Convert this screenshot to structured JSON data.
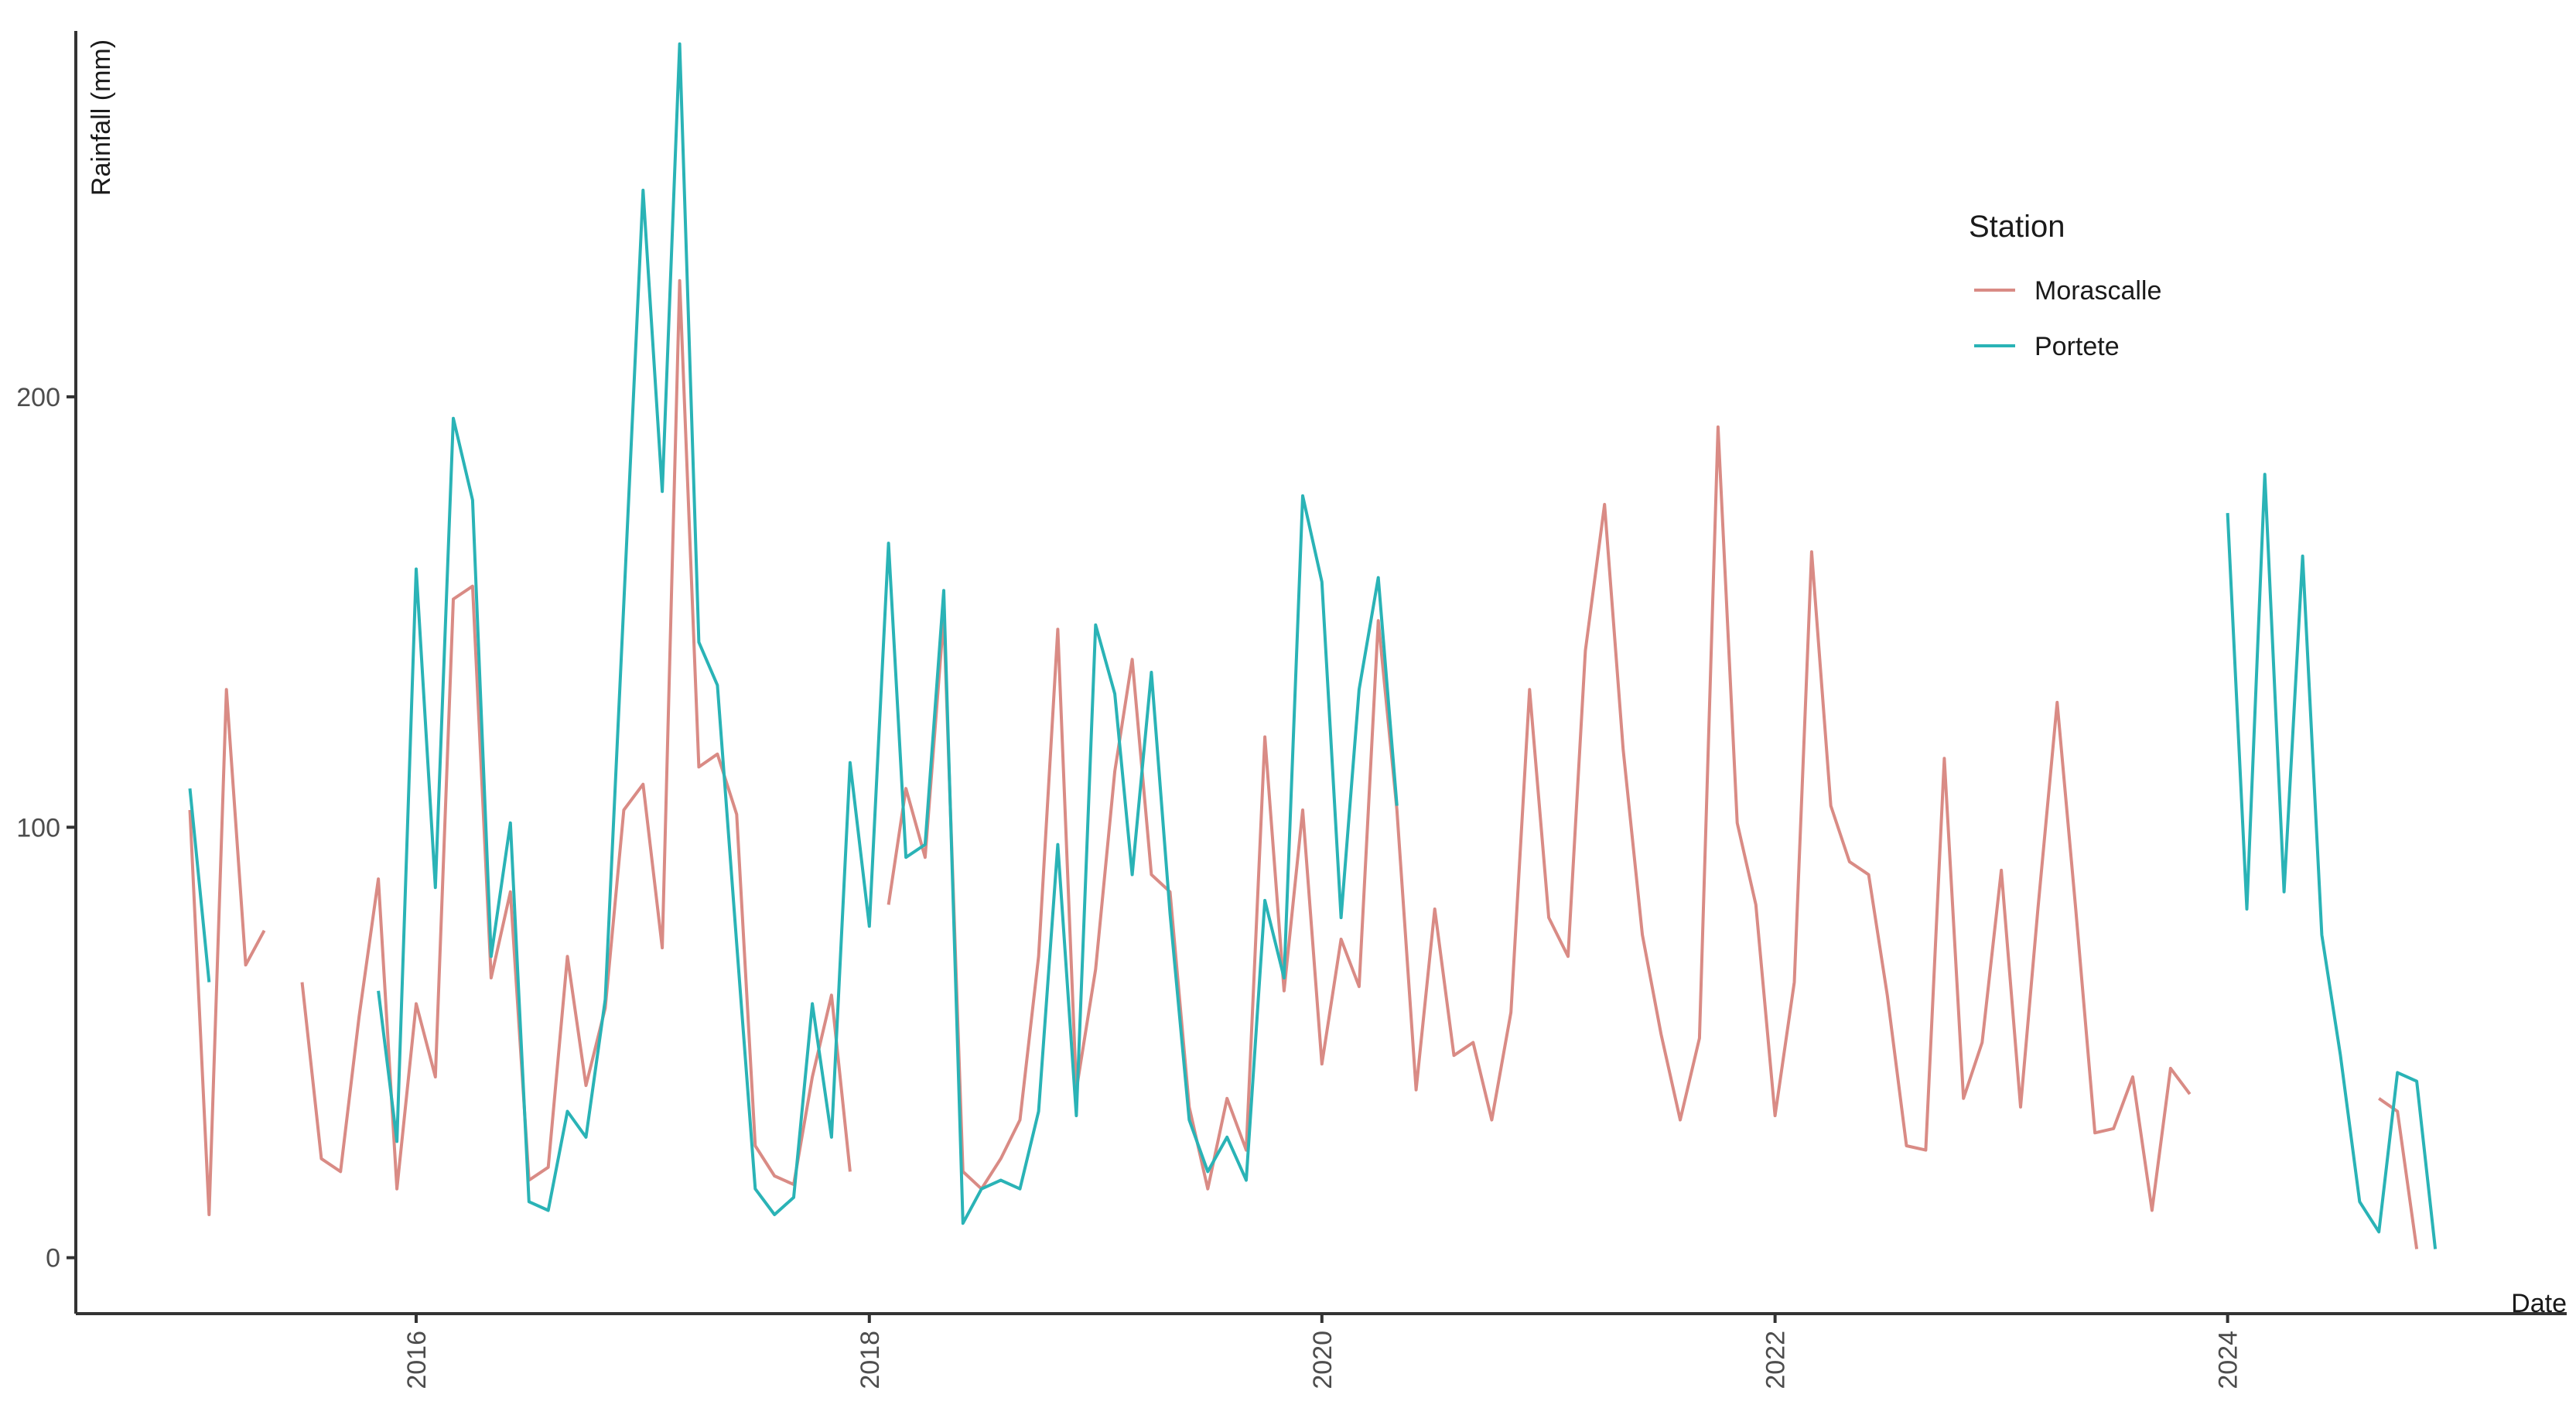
{
  "chart_data": {
    "type": "line",
    "title": "",
    "xlabel": "Date",
    "ylabel": "Rainfall (mm)",
    "xlim": [
      "2014-07-01",
      "2025-07-01"
    ],
    "ylim": [
      -13,
      285
    ],
    "x_ticks": [
      "2016",
      "2018",
      "2020",
      "2022",
      "2024"
    ],
    "y_ticks": [
      0,
      100,
      200
    ],
    "grid": false,
    "legend": {
      "title": "Station",
      "position": "top-right"
    },
    "series": [
      {
        "name": "Morascalle",
        "color": "#d98b85",
        "points": [
          [
            "2015-01-01",
            104
          ],
          [
            "2015-02-01",
            10
          ],
          [
            "2015-03-01",
            132
          ],
          [
            "2015-04-01",
            68
          ],
          [
            "2015-05-01",
            76
          ],
          [
            "2015-06-01",
            null
          ],
          [
            "2015-07-01",
            64
          ],
          [
            "2015-08-01",
            23
          ],
          [
            "2015-09-01",
            20
          ],
          [
            "2015-10-01",
            56
          ],
          [
            "2015-11-01",
            88
          ],
          [
            "2015-12-01",
            16
          ],
          [
            "2016-01-01",
            59
          ],
          [
            "2016-02-01",
            42
          ],
          [
            "2016-03-01",
            153
          ],
          [
            "2016-04-01",
            156
          ],
          [
            "2016-05-01",
            65
          ],
          [
            "2016-06-01",
            85
          ],
          [
            "2016-07-01",
            18
          ],
          [
            "2016-08-01",
            21
          ],
          [
            "2016-09-01",
            70
          ],
          [
            "2016-10-01",
            40
          ],
          [
            "2016-11-01",
            58
          ],
          [
            "2016-12-01",
            104
          ],
          [
            "2017-01-01",
            110
          ],
          [
            "2017-02-01",
            72
          ],
          [
            "2017-03-01",
            227
          ],
          [
            "2017-04-01",
            114
          ],
          [
            "2017-05-01",
            117
          ],
          [
            "2017-06-01",
            103
          ],
          [
            "2017-07-01",
            26
          ],
          [
            "2017-08-01",
            19
          ],
          [
            "2017-09-01",
            17
          ],
          [
            "2017-10-01",
            42
          ],
          [
            "2017-11-01",
            61
          ],
          [
            "2017-12-01",
            20
          ],
          [
            "2018-01-01",
            null
          ],
          [
            "2018-02-01",
            82
          ],
          [
            "2018-03-01",
            109
          ],
          [
            "2018-04-01",
            93
          ],
          [
            "2018-05-01",
            149
          ],
          [
            "2018-06-01",
            20
          ],
          [
            "2018-07-01",
            16
          ],
          [
            "2018-08-01",
            23
          ],
          [
            "2018-09-01",
            32
          ],
          [
            "2018-10-01",
            70
          ],
          [
            "2018-11-01",
            146
          ],
          [
            "2018-12-01",
            39
          ],
          [
            "2019-01-01",
            67
          ],
          [
            "2019-02-01",
            113
          ],
          [
            "2019-03-01",
            139
          ],
          [
            "2019-04-01",
            89
          ],
          [
            "2019-05-01",
            85
          ],
          [
            "2019-06-01",
            35
          ],
          [
            "2019-07-01",
            16
          ],
          [
            "2019-08-01",
            37
          ],
          [
            "2019-09-01",
            25
          ],
          [
            "2019-10-01",
            121
          ],
          [
            "2019-11-01",
            62
          ],
          [
            "2019-12-01",
            104
          ],
          [
            "2020-01-01",
            45
          ],
          [
            "2020-02-01",
            74
          ],
          [
            "2020-03-01",
            63
          ],
          [
            "2020-04-01",
            148
          ],
          [
            "2020-05-01",
            104
          ],
          [
            "2020-06-01",
            39
          ],
          [
            "2020-07-01",
            81
          ],
          [
            "2020-08-01",
            47
          ],
          [
            "2020-09-01",
            50
          ],
          [
            "2020-10-01",
            32
          ],
          [
            "2020-11-01",
            57
          ],
          [
            "2020-12-01",
            132
          ],
          [
            "2021-01-01",
            79
          ],
          [
            "2021-02-01",
            70
          ],
          [
            "2021-03-01",
            141
          ],
          [
            "2021-04-01",
            175
          ],
          [
            "2021-05-01",
            118
          ],
          [
            "2021-06-01",
            75
          ],
          [
            "2021-07-01",
            52
          ],
          [
            "2021-08-01",
            32
          ],
          [
            "2021-09-01",
            51
          ],
          [
            "2021-10-01",
            193
          ],
          [
            "2021-11-01",
            101
          ],
          [
            "2021-12-01",
            82
          ],
          [
            "2022-01-01",
            33
          ],
          [
            "2022-02-01",
            64
          ],
          [
            "2022-03-01",
            164
          ],
          [
            "2022-04-01",
            105
          ],
          [
            "2022-05-01",
            92
          ],
          [
            "2022-06-01",
            89
          ],
          [
            "2022-07-01",
            61
          ],
          [
            "2022-08-01",
            26
          ],
          [
            "2022-09-01",
            25
          ],
          [
            "2022-10-01",
            116
          ],
          [
            "2022-11-01",
            37
          ],
          [
            "2022-12-01",
            50
          ],
          [
            "2023-01-01",
            90
          ],
          [
            "2023-02-01",
            35
          ],
          [
            "2023-03-01",
            81
          ],
          [
            "2023-04-01",
            129
          ],
          [
            "2023-05-01",
            81
          ],
          [
            "2023-06-01",
            29
          ],
          [
            "2023-07-01",
            30
          ],
          [
            "2023-08-01",
            42
          ],
          [
            "2023-09-01",
            11
          ],
          [
            "2023-10-01",
            44
          ],
          [
            "2023-11-01",
            38
          ],
          [
            "2023-12-01",
            null
          ],
          [
            "2024-01-01",
            null
          ],
          [
            "2024-02-01",
            null
          ],
          [
            "2024-03-01",
            null
          ],
          [
            "2024-04-01",
            null
          ],
          [
            "2024-05-01",
            null
          ],
          [
            "2024-06-01",
            null
          ],
          [
            "2024-07-01",
            null
          ],
          [
            "2024-08-01",
            null
          ],
          [
            "2024-09-01",
            37
          ],
          [
            "2024-10-01",
            34
          ],
          [
            "2024-11-01",
            2
          ]
        ]
      },
      {
        "name": "Portete",
        "color": "#2ab3b6",
        "points": [
          [
            "2015-01-01",
            109
          ],
          [
            "2015-02-01",
            64
          ],
          [
            "2015-03-01",
            null
          ],
          [
            "2015-11-01",
            62
          ],
          [
            "2015-12-01",
            27
          ],
          [
            "2016-01-01",
            160
          ],
          [
            "2016-02-01",
            86
          ],
          [
            "2016-03-01",
            195
          ],
          [
            "2016-04-01",
            176
          ],
          [
            "2016-05-01",
            70
          ],
          [
            "2016-06-01",
            101
          ],
          [
            "2016-07-01",
            13
          ],
          [
            "2016-08-01",
            11
          ],
          [
            "2016-09-01",
            34
          ],
          [
            "2016-10-01",
            28
          ],
          [
            "2016-11-01",
            60
          ],
          [
            "2016-12-01",
            152
          ],
          [
            "2017-01-01",
            248
          ],
          [
            "2017-02-01",
            178
          ],
          [
            "2017-03-01",
            282
          ],
          [
            "2017-04-01",
            143
          ],
          [
            "2017-05-01",
            133
          ],
          [
            "2017-06-01",
            73
          ],
          [
            "2017-07-01",
            16
          ],
          [
            "2017-08-01",
            10
          ],
          [
            "2017-09-01",
            14
          ],
          [
            "2017-10-01",
            59
          ],
          [
            "2017-11-01",
            28
          ],
          [
            "2017-12-01",
            115
          ],
          [
            "2018-01-01",
            77
          ],
          [
            "2018-02-01",
            166
          ],
          [
            "2018-03-01",
            93
          ],
          [
            "2018-04-01",
            96
          ],
          [
            "2018-05-01",
            155
          ],
          [
            "2018-06-01",
            8
          ],
          [
            "2018-07-01",
            16
          ],
          [
            "2018-08-01",
            18
          ],
          [
            "2018-09-01",
            16
          ],
          [
            "2018-10-01",
            34
          ],
          [
            "2018-11-01",
            96
          ],
          [
            "2018-12-01",
            33
          ],
          [
            "2019-01-01",
            147
          ],
          [
            "2019-02-01",
            131
          ],
          [
            "2019-03-01",
            89
          ],
          [
            "2019-04-01",
            136
          ],
          [
            "2019-05-01",
            80
          ],
          [
            "2019-06-01",
            32
          ],
          [
            "2019-07-01",
            20
          ],
          [
            "2019-08-01",
            28
          ],
          [
            "2019-09-01",
            18
          ],
          [
            "2019-10-01",
            83
          ],
          [
            "2019-11-01",
            65
          ],
          [
            "2019-12-01",
            177
          ],
          [
            "2020-01-01",
            157
          ],
          [
            "2020-02-01",
            79
          ],
          [
            "2020-03-01",
            132
          ],
          [
            "2020-04-01",
            158
          ],
          [
            "2020-05-01",
            105
          ],
          [
            "2020-06-01",
            null
          ],
          [
            "2024-01-01",
            173
          ],
          [
            "2024-02-01",
            81
          ],
          [
            "2024-03-01",
            182
          ],
          [
            "2024-04-01",
            85
          ],
          [
            "2024-05-01",
            163
          ],
          [
            "2024-06-01",
            75
          ],
          [
            "2024-07-01",
            47
          ],
          [
            "2024-08-01",
            13
          ],
          [
            "2024-09-01",
            6
          ],
          [
            "2024-10-01",
            43
          ],
          [
            "2024-11-01",
            41
          ],
          [
            "2024-12-01",
            2
          ]
        ]
      }
    ]
  }
}
